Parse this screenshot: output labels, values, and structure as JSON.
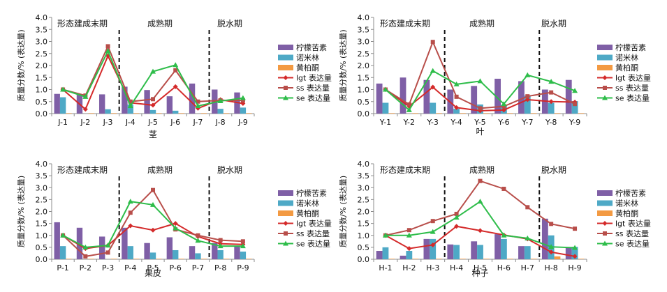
{
  "colors": {
    "limonin": "#7f5fa6",
    "nomilin": "#4ea9c6",
    "phellodendrin": "#f39a42",
    "lgt": "#d42a2a",
    "ss": "#b84e4a",
    "se": "#2ebd4a",
    "axis": "#8c8c8c"
  },
  "legend_labels": [
    "柠檬苦素",
    "诺米林",
    "黄柏酮",
    "lgt 表达量",
    "ss 表达量",
    "se 表达量"
  ],
  "chart_data": [
    {
      "type": "bar",
      "title": "茎",
      "ylabel": "质量分数/% (表达量)",
      "ylim": [
        0,
        4
      ],
      "yticks": [
        "0.0",
        "0.5",
        "1.0",
        "1.5",
        "2.0",
        "2.5",
        "3.0",
        "3.5",
        "4.0"
      ],
      "grid": false,
      "legend_position": "right",
      "categories": [
        "J-1",
        "J-2",
        "J-3",
        "J-4",
        "J-5",
        "J-6",
        "J-7",
        "J-8",
        "J-9"
      ],
      "stages": [
        "形态建成末期",
        "成熟期",
        "脱水期"
      ],
      "series": [
        {
          "name": "柠檬苦素",
          "kind": "bar",
          "values": [
            0.82,
            0.8,
            0.8,
            1.12,
            0.98,
            0.72,
            1.25,
            1.0,
            0.88
          ]
        },
        {
          "name": "诺米林",
          "kind": "bar",
          "values": [
            0.68,
            0.0,
            0.18,
            0.38,
            0.15,
            0.12,
            0.0,
            0.2,
            0.25
          ]
        },
        {
          "name": "黄柏酮",
          "kind": "bar",
          "values": [
            0.02,
            0.02,
            0.02,
            0.02,
            0.02,
            0.02,
            0.02,
            0.02,
            0.02
          ]
        },
        {
          "name": "lgt 表达量",
          "kind": "line",
          "values": [
            1.0,
            0.18,
            2.4,
            0.45,
            0.35,
            1.12,
            0.22,
            0.58,
            0.42
          ]
        },
        {
          "name": "ss 表达量",
          "kind": "line",
          "values": [
            1.0,
            0.75,
            2.8,
            0.5,
            0.6,
            1.8,
            0.5,
            0.55,
            0.55
          ]
        },
        {
          "name": "se 表达量",
          "kind": "line",
          "values": [
            1.0,
            0.7,
            2.6,
            0.32,
            1.75,
            2.02,
            0.32,
            0.52,
            0.65
          ]
        }
      ]
    },
    {
      "type": "bar",
      "title": "叶",
      "ylabel": "质量分数/% (表达量)",
      "ylim": [
        0,
        4
      ],
      "yticks": [
        "0.0",
        "0.5",
        "1.0",
        "1.5",
        "2.0",
        "2.5",
        "3.0",
        "3.5",
        "4.0"
      ],
      "grid": false,
      "legend_position": "right",
      "categories": [
        "Y-1",
        "Y-2",
        "Y-3",
        "Y-4",
        "Y-5",
        "Y-6",
        "Y-7",
        "Y-8",
        "Y-9"
      ],
      "stages": [
        "形态建成末期",
        "成熟期",
        "脱水期"
      ],
      "series": [
        {
          "name": "柠檬苦素",
          "kind": "bar",
          "values": [
            1.25,
            1.5,
            1.4,
            1.0,
            1.15,
            1.45,
            1.35,
            1.0,
            1.4
          ]
        },
        {
          "name": "诺米林",
          "kind": "bar",
          "values": [
            0.45,
            0.0,
            0.45,
            0.2,
            0.38,
            0.35,
            0.75,
            0.45,
            0.52
          ]
        },
        {
          "name": "黄柏酮",
          "kind": "bar",
          "values": [
            0.02,
            0.02,
            0.02,
            0.02,
            0.02,
            0.02,
            0.02,
            0.02,
            0.02
          ]
        },
        {
          "name": "lgt 表达量",
          "kind": "line",
          "values": [
            1.0,
            0.3,
            1.1,
            0.25,
            0.12,
            0.15,
            0.58,
            0.5,
            0.48
          ]
        },
        {
          "name": "ss 表达量",
          "kind": "line",
          "values": [
            1.0,
            0.38,
            2.98,
            0.7,
            0.22,
            0.3,
            0.72,
            0.88,
            0.4
          ]
        },
        {
          "name": "se 表达量",
          "kind": "line",
          "values": [
            1.0,
            0.15,
            1.78,
            1.22,
            1.35,
            0.4,
            1.6,
            1.33,
            0.95
          ]
        }
      ]
    },
    {
      "type": "bar",
      "title": "果皮",
      "ylabel": "质量分数/% (表达量)",
      "ylim": [
        0,
        4
      ],
      "yticks": [
        "0.0",
        "0.5",
        "1.0",
        "1.5",
        "2.0",
        "2.5",
        "3.0",
        "3.5",
        "4.0"
      ],
      "grid": false,
      "legend_position": "right",
      "categories": [
        "P-1",
        "P-2",
        "P-3",
        "P-4",
        "P-5",
        "P-6",
        "P-7",
        "P-8",
        "P-9"
      ],
      "stages": [
        "形态建成末期",
        "成熟期",
        "脱水期"
      ],
      "series": [
        {
          "name": "柠檬苦素",
          "kind": "bar",
          "values": [
            1.55,
            1.32,
            0.95,
            1.32,
            0.68,
            0.92,
            0.55,
            0.68,
            0.55
          ]
        },
        {
          "name": "诺米林",
          "kind": "bar",
          "values": [
            0.55,
            0.0,
            0.0,
            0.55,
            0.28,
            0.38,
            0.25,
            0.38,
            0.32
          ]
        },
        {
          "name": "黄柏酮",
          "kind": "bar",
          "values": [
            0.02,
            0.02,
            0.02,
            0.02,
            0.02,
            0.02,
            0.02,
            0.02,
            0.02
          ]
        },
        {
          "name": "lgt 表达量",
          "kind": "line",
          "values": [
            1.0,
            0.45,
            0.58,
            1.4,
            1.22,
            1.5,
            0.95,
            0.65,
            0.62
          ]
        },
        {
          "name": "ss 表达量",
          "kind": "line",
          "values": [
            1.0,
            0.12,
            0.28,
            1.95,
            2.9,
            1.25,
            1.0,
            0.8,
            0.75
          ]
        },
        {
          "name": "se 表达量",
          "kind": "line",
          "values": [
            1.0,
            0.5,
            0.58,
            2.42,
            2.28,
            1.3,
            0.78,
            0.55,
            0.55
          ]
        }
      ]
    },
    {
      "type": "bar",
      "title": "种子",
      "ylabel": "质量分数/% (表达量)",
      "ylim": [
        0,
        4
      ],
      "yticks": [
        "0.0",
        "0.5",
        "1.0",
        "1.5",
        "2.0",
        "2.5",
        "3.0",
        "3.5",
        "4.0"
      ],
      "grid": false,
      "legend_position": "right",
      "categories": [
        "H-1",
        "H-2",
        "H-3",
        "H-4",
        "H-5",
        "H-6",
        "H-7",
        "H-8",
        "H-9"
      ],
      "stages": [
        "形态建成末期",
        "成熟期",
        "脱水期"
      ],
      "series": [
        {
          "name": "柠檬苦素",
          "kind": "bar",
          "values": [
            0.35,
            0.15,
            0.85,
            0.62,
            0.75,
            1.05,
            0.55,
            1.7,
            0.48
          ]
        },
        {
          "name": "诺米林",
          "kind": "bar",
          "values": [
            0.5,
            0.35,
            0.85,
            0.6,
            0.6,
            0.85,
            0.55,
            1.0,
            0.52
          ]
        },
        {
          "name": "黄柏酮",
          "kind": "bar",
          "values": [
            0.02,
            0.02,
            0.02,
            0.02,
            0.02,
            0.02,
            0.02,
            0.12,
            0.02
          ]
        },
        {
          "name": "lgt 表达量",
          "kind": "line",
          "values": [
            1.0,
            0.45,
            0.6,
            1.38,
            1.2,
            1.02,
            0.85,
            0.3,
            0.12
          ]
        },
        {
          "name": "ss 表达量",
          "kind": "line",
          "values": [
            1.0,
            1.22,
            1.6,
            1.9,
            3.28,
            2.95,
            2.18,
            1.48,
            1.28
          ]
        },
        {
          "name": "se 表达量",
          "kind": "line",
          "values": [
            1.0,
            1.0,
            1.15,
            1.75,
            2.42,
            1.0,
            0.88,
            0.52,
            0.48
          ]
        }
      ]
    }
  ]
}
